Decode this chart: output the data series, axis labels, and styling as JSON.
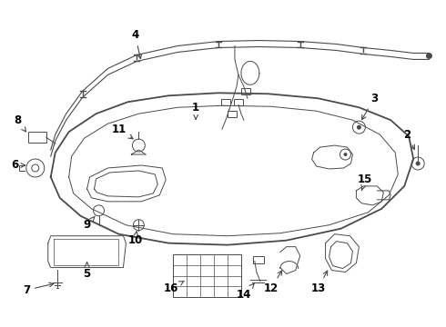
{
  "bg_color": "#ffffff",
  "line_color": "#4a4a4a",
  "text_color": "#000000",
  "fig_width": 4.9,
  "fig_height": 3.6,
  "dpi": 100,
  "lw_main": 1.3,
  "lw_thin": 0.7,
  "lw_wire": 0.8
}
